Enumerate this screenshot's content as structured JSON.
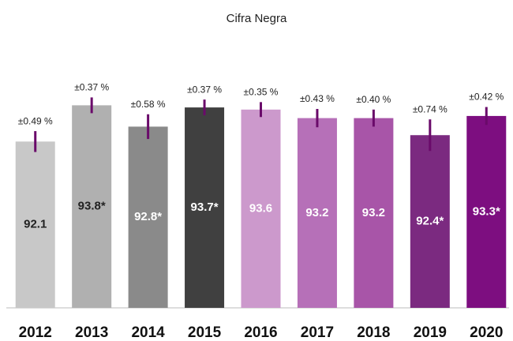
{
  "chart_data": {
    "type": "bar",
    "title": "Cifra Negra",
    "categories": [
      "2012",
      "2013",
      "2014",
      "2015",
      "2016",
      "2017",
      "2018",
      "2019",
      "2020"
    ],
    "values": [
      92.1,
      93.8,
      92.8,
      93.7,
      93.6,
      93.2,
      93.2,
      92.4,
      93.3
    ],
    "value_labels": [
      "92.1",
      "93.8*",
      "92.8*",
      "93.7*",
      "93.6",
      "93.2",
      "93.2",
      "92.4*",
      "93.3*"
    ],
    "errors": [
      0.49,
      0.37,
      0.58,
      0.37,
      0.35,
      0.43,
      0.4,
      0.74,
      0.42
    ],
    "error_labels": [
      "±0.49 %",
      "±0.37 %",
      "±0.58 %",
      "±0.37 %",
      "±0.35 %",
      "±0.43 %",
      "±0.40 %",
      "±0.74 %",
      "±0.42 %"
    ],
    "colors": [
      "#c8c8c8",
      "#b0b0b0",
      "#8a8a8a",
      "#404040",
      "#cc99cc",
      "#b670b8",
      "#a855a8",
      "#7b2a80",
      "#7d0e80"
    ],
    "label_colors": [
      "#222222",
      "#222222",
      "#ffffff",
      "#ffffff",
      "#ffffff",
      "#ffffff",
      "#ffffff",
      "#ffffff",
      "#ffffff"
    ],
    "error_color": "#6a0a6a",
    "ylim": [
      84.3,
      95
    ]
  }
}
